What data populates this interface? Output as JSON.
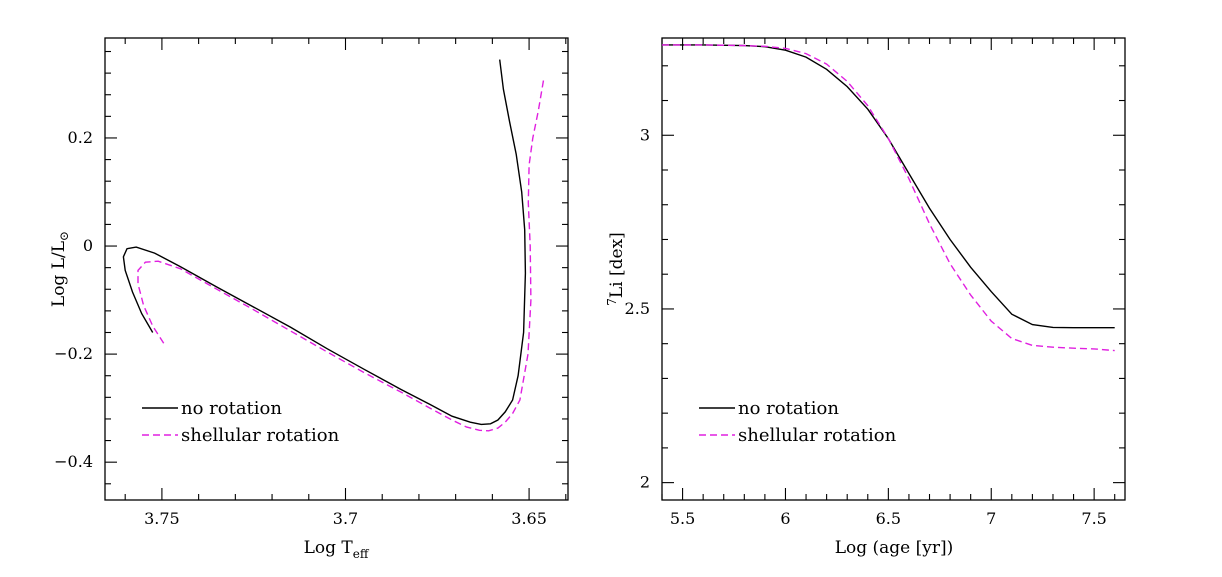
{
  "chart_data": [
    {
      "type": "line",
      "xlabel": "Log T",
      "xlabel_sub": "eff",
      "ylabel": "Log L/L",
      "ylabel_symbol": "⊙",
      "x_reversed": true,
      "xlim": [
        3.7655,
        3.6394
      ],
      "ylim": [
        -0.47,
        0.385
      ],
      "xticks": [
        3.75,
        3.7,
        3.65
      ],
      "xtick_labels": [
        "3.75",
        "3.7",
        "3.65"
      ],
      "x_minor_step": 0.01,
      "yticks": [
        -0.4,
        -0.2,
        0,
        0.2
      ],
      "ytick_labels": [
        "−0.4",
        "−0.2",
        "0",
        "0.2"
      ],
      "y_minor_step": 0.04,
      "legend_position": "bottom-left",
      "series": [
        {
          "name": "no rotation",
          "color": "#000000",
          "style": "solid",
          "x": [
            3.7525,
            3.7555,
            3.758,
            3.76,
            3.7605,
            3.7595,
            3.757,
            3.752,
            3.745,
            3.735,
            3.725,
            3.715,
            3.705,
            3.695,
            3.685,
            3.677,
            3.671,
            3.666,
            3.663,
            3.6605,
            3.6585,
            3.6565,
            3.6545,
            3.653,
            3.6515,
            3.651,
            3.6512,
            3.652,
            3.6535,
            3.6553,
            3.657,
            3.658
          ],
          "y": [
            -0.16,
            -0.125,
            -0.085,
            -0.045,
            -0.02,
            -0.005,
            -0.002,
            -0.013,
            -0.038,
            -0.076,
            -0.113,
            -0.15,
            -0.19,
            -0.228,
            -0.265,
            -0.293,
            -0.315,
            -0.326,
            -0.33,
            -0.329,
            -0.322,
            -0.307,
            -0.285,
            -0.24,
            -0.16,
            -0.05,
            0.03,
            0.1,
            0.17,
            0.23,
            0.29,
            0.345
          ]
        },
        {
          "name": "shellular rotation",
          "color": "#e020e0",
          "style": "dashed",
          "x": [
            3.7495,
            3.7525,
            3.755,
            3.7565,
            3.7565,
            3.7545,
            3.751,
            3.745,
            3.735,
            3.725,
            3.715,
            3.705,
            3.695,
            3.685,
            3.677,
            3.671,
            3.667,
            3.6635,
            3.661,
            3.6585,
            3.6565,
            3.6545,
            3.6525,
            3.6503,
            3.6495,
            3.6497,
            3.6502,
            3.65,
            3.649,
            3.6475,
            3.646
          ],
          "y": [
            -0.18,
            -0.148,
            -0.11,
            -0.07,
            -0.045,
            -0.03,
            -0.028,
            -0.042,
            -0.08,
            -0.118,
            -0.157,
            -0.196,
            -0.234,
            -0.27,
            -0.3,
            -0.322,
            -0.335,
            -0.341,
            -0.342,
            -0.337,
            -0.326,
            -0.31,
            -0.285,
            -0.2,
            -0.1,
            0.0,
            0.08,
            0.15,
            0.2,
            0.25,
            0.31
          ]
        }
      ]
    },
    {
      "type": "line",
      "xlabel": "Log (age [yr])",
      "ylabel_sup": "7",
      "ylabel": "Li [dex]",
      "xlim": [
        5.4,
        7.65
      ],
      "ylim": [
        1.95,
        3.28
      ],
      "xticks": [
        5.5,
        6,
        6.5,
        7,
        7.5
      ],
      "xtick_labels": [
        "5.5",
        "6",
        "6.5",
        "7",
        "7.5"
      ],
      "x_minor_step": 0.1,
      "yticks": [
        2,
        2.5,
        3
      ],
      "ytick_labels": [
        "2",
        "2.5",
        "3"
      ],
      "y_minor_step": 0.1,
      "legend_position": "bottom-left",
      "series": [
        {
          "name": "no rotation",
          "color": "#000000",
          "style": "solid",
          "x": [
            5.4,
            5.6,
            5.8,
            5.9,
            6.0,
            6.1,
            6.2,
            6.3,
            6.4,
            6.5,
            6.6,
            6.7,
            6.8,
            6.9,
            7.0,
            7.1,
            7.2,
            7.3,
            7.4,
            7.5,
            7.6
          ],
          "y": [
            3.26,
            3.26,
            3.258,
            3.255,
            3.245,
            3.225,
            3.19,
            3.14,
            3.075,
            2.99,
            2.89,
            2.79,
            2.7,
            2.62,
            2.55,
            2.485,
            2.455,
            2.447,
            2.446,
            2.446,
            2.446
          ]
        },
        {
          "name": "shellular rotation",
          "color": "#e020e0",
          "style": "dashed",
          "x": [
            5.4,
            5.6,
            5.8,
            5.9,
            6.0,
            6.1,
            6.2,
            6.3,
            6.4,
            6.5,
            6.6,
            6.7,
            6.8,
            6.9,
            7.0,
            7.1,
            7.2,
            7.3,
            7.4,
            7.5,
            7.6
          ],
          "y": [
            3.26,
            3.26,
            3.258,
            3.256,
            3.25,
            3.235,
            3.205,
            3.155,
            3.085,
            2.99,
            2.875,
            2.745,
            2.63,
            2.54,
            2.465,
            2.415,
            2.395,
            2.39,
            2.387,
            2.385,
            2.38
          ]
        }
      ]
    }
  ]
}
